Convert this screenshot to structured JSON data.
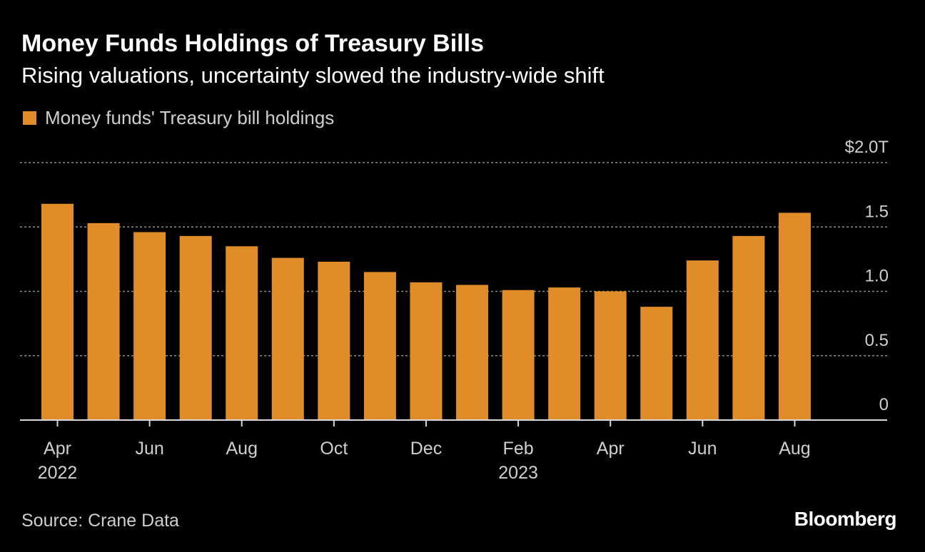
{
  "header": {
    "title": "Money Funds Holdings of Treasury Bills",
    "subtitle": "Rising valuations, uncertainty slowed the industry-wide shift"
  },
  "legend": {
    "label": "Money funds' Treasury bill holdings"
  },
  "footer": {
    "source": "Source: Crane Data",
    "brand": "Bloomberg"
  },
  "colors": {
    "bar": "#e08c28",
    "background": "#000000",
    "grid": "#8a8a8a",
    "tick_text": "#cfcfcf"
  },
  "chart_data": {
    "type": "bar",
    "categories": [
      "Apr 2022",
      "May 2022",
      "Jun 2022",
      "Jul 2022",
      "Aug 2022",
      "Sep 2022",
      "Oct 2022",
      "Nov 2022",
      "Dec 2022",
      "Jan 2023",
      "Feb 2023",
      "Mar 2023",
      "Apr 2023",
      "May 2023",
      "Jun 2023",
      "Jul 2023",
      "Aug 2023"
    ],
    "series": [
      {
        "name": "Money funds' Treasury bill holdings",
        "values": [
          1.68,
          1.53,
          1.46,
          1.43,
          1.35,
          1.26,
          1.23,
          1.15,
          1.07,
          1.05,
          1.01,
          1.03,
          1.0,
          0.88,
          1.24,
          1.43,
          1.61
        ]
      }
    ],
    "ylim": [
      0,
      2.0
    ],
    "y_ticks": [
      {
        "value": 2.0,
        "label": "$2.0T"
      },
      {
        "value": 1.5,
        "label": "1.5"
      },
      {
        "value": 1.0,
        "label": "1.0"
      },
      {
        "value": 0.5,
        "label": "0.5"
      },
      {
        "value": 0,
        "label": "0"
      }
    ],
    "x_ticks": [
      {
        "index": 0,
        "label": "Apr",
        "sublabel": "2022"
      },
      {
        "index": 2,
        "label": "Jun",
        "sublabel": ""
      },
      {
        "index": 4,
        "label": "Aug",
        "sublabel": ""
      },
      {
        "index": 6,
        "label": "Oct",
        "sublabel": ""
      },
      {
        "index": 8,
        "label": "Dec",
        "sublabel": ""
      },
      {
        "index": 10,
        "label": "Feb",
        "sublabel": "2023"
      },
      {
        "index": 12,
        "label": "Apr",
        "sublabel": ""
      },
      {
        "index": 14,
        "label": "Jun",
        "sublabel": ""
      },
      {
        "index": 16,
        "label": "Aug",
        "sublabel": ""
      }
    ],
    "grid": true,
    "y_axis_side": "right",
    "legend_position": "top-left"
  }
}
